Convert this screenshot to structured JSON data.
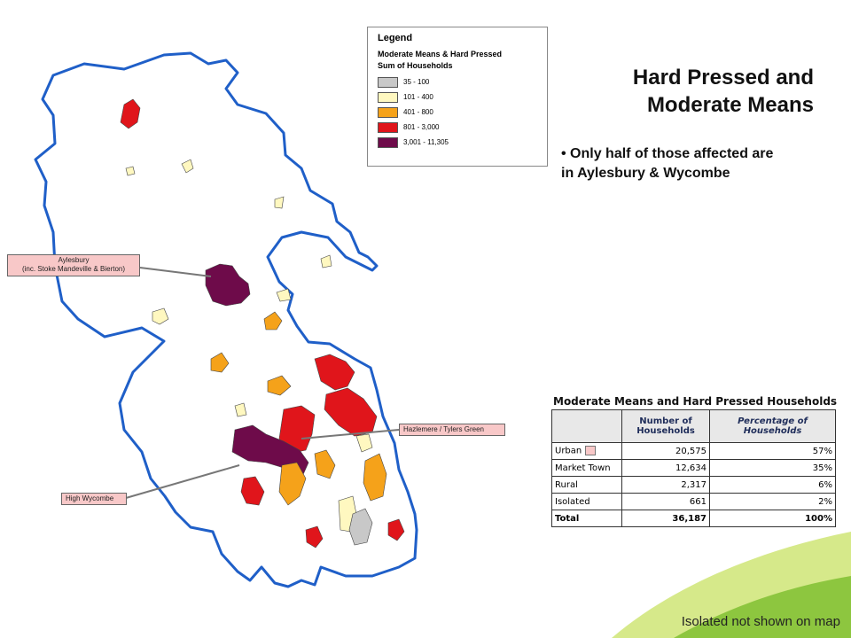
{
  "legend": {
    "title": "Legend",
    "subtitle1": "Moderate Means & Hard Pressed",
    "subtitle2": "Sum of Households",
    "classes": [
      {
        "label": "35 - 100",
        "color": "#c8c8c8"
      },
      {
        "label": "101 - 400",
        "color": "#fff8c0"
      },
      {
        "label": "401 - 800",
        "color": "#f5a21a"
      },
      {
        "label": "801 - 3,000",
        "color": "#e0151b"
      },
      {
        "label": "3,001 - 11,305",
        "color": "#6e0b4a"
      }
    ]
  },
  "heading": {
    "line1": "Hard Pressed and",
    "line2": "Moderate Means"
  },
  "bullet": {
    "line1": "• Only half of those affected are",
    "line2": "in Aylesbury & Wycombe"
  },
  "callouts": {
    "aylesbury_line1": "Aylesbury",
    "aylesbury_line2": "(inc. Stoke Mandeville & Bierton)",
    "hazlemere": "Hazlemere / Tylers Green",
    "high_wycombe": "High Wycombe"
  },
  "chart_data": {
    "type": "table",
    "title": "Moderate Means and Hard Pressed Households",
    "columns": [
      "",
      "Number of Households",
      "Percentage of Households"
    ],
    "rows": [
      {
        "label": "Urban",
        "households": "20,575",
        "percent": "57%"
      },
      {
        "label": "Market Town",
        "households": "12,634",
        "percent": "35%"
      },
      {
        "label": "Rural",
        "households": "2,317",
        "percent": "6%"
      },
      {
        "label": "Isolated",
        "households": "661",
        "percent": "2%"
      },
      {
        "label": "Total",
        "households": "36,187",
        "percent": "100%"
      }
    ]
  },
  "footnote": "Isolated not shown on map",
  "colors": {
    "boundary": "#1f5fc8",
    "swoosh_light": "#d6e98a",
    "swoosh_dark": "#8dc63f"
  }
}
